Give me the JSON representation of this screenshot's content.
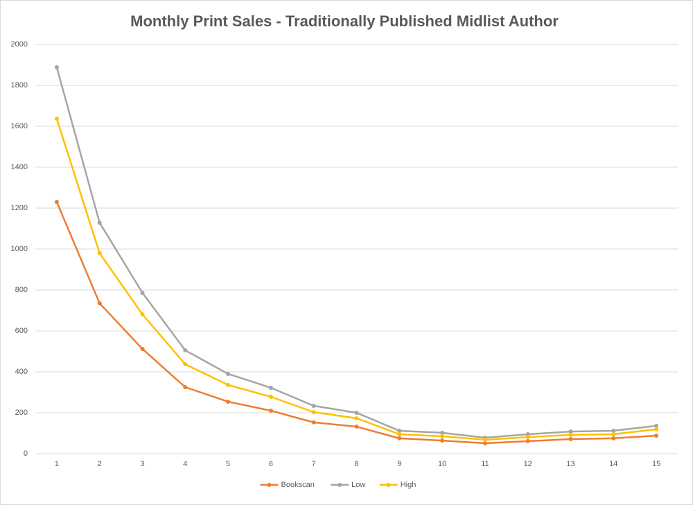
{
  "chart_data": {
    "type": "line",
    "title": "Monthly Print Sales - Traditionally Published Midlist Author",
    "categories": [
      "1",
      "2",
      "3",
      "4",
      "5",
      "6",
      "7",
      "8",
      "9",
      "10",
      "11",
      "12",
      "13",
      "14",
      "15"
    ],
    "series": [
      {
        "name": "Bookscan",
        "color": "#ed7d31",
        "values": [
          1230,
          735,
          512,
          325,
          254,
          210,
          153,
          132,
          75,
          64,
          51,
          61,
          71,
          75,
          88
        ]
      },
      {
        "name": "Low",
        "color": "#a5a5a5",
        "values": [
          1888,
          1129,
          786,
          505,
          390,
          322,
          234,
          200,
          112,
          102,
          78,
          95,
          108,
          112,
          136
        ]
      },
      {
        "name": "High",
        "color": "#ffc000",
        "values": [
          1637,
          980,
          681,
          437,
          336,
          278,
          203,
          173,
          95,
          85,
          68,
          81,
          92,
          95,
          119
        ]
      }
    ],
    "ylim": [
      0,
      2000
    ],
    "yticks": [
      0,
      200,
      400,
      600,
      800,
      1000,
      1200,
      1400,
      1600,
      1800,
      2000
    ],
    "grid": true,
    "legend": "bottom"
  }
}
